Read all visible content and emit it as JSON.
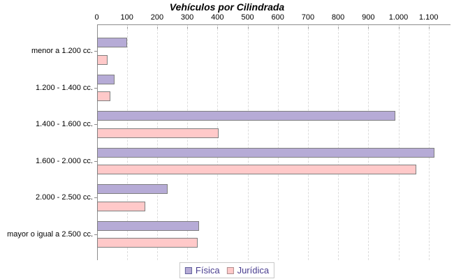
{
  "chart_data": {
    "type": "bar",
    "orientation": "horizontal",
    "title": "Vehículos por Cilindrada",
    "categories": [
      "menor a 1.200 cc.",
      "1.200 - 1.400 cc.",
      "1.400 - 1.600 cc.",
      "1.600 - 2.000 cc.",
      "2.000 - 2.500 cc.",
      "mayor o igual a 2.500 cc."
    ],
    "series": [
      {
        "name": "Física",
        "color": "#b6abd6",
        "swatch_border": "#63639c",
        "values": [
          100,
          60,
          990,
          1120,
          235,
          340
        ]
      },
      {
        "name": "Jurídica",
        "color": "#ffc9c9",
        "swatch_border": "#af8e8e",
        "values": [
          35,
          45,
          405,
          1060,
          160,
          335
        ]
      }
    ],
    "x_axis": {
      "position": "top",
      "min": 0,
      "max": 1180,
      "tick_interval": 100,
      "tick_labels": [
        "0",
        "100",
        "200",
        "300",
        "400",
        "500",
        "600",
        "700",
        "800",
        "900",
        "1.000",
        "1.100"
      ]
    },
    "grid": "vertical-dashed",
    "legend_position": "bottom-center",
    "colors": {
      "bar_border": "#7f7f7f",
      "axis": "#8c8c8c",
      "gridline": "#dcdcdc",
      "legend_border": "#c8c8c8",
      "legend_text": "#493d8f",
      "title_text": "#000000",
      "label_text": "#000000",
      "background": "#ffffff"
    }
  }
}
